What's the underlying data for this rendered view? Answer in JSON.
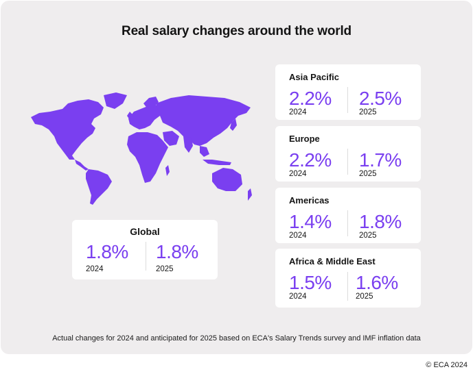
{
  "title": "Real salary changes around the world",
  "accent_color": "#7a3ff0",
  "map_icon": "world-map-icon",
  "global": {
    "name": "Global",
    "value_2024": "1.8%",
    "year_2024": "2024",
    "value_2025": "1.8%",
    "year_2025": "2025"
  },
  "regions": [
    {
      "name": "Asia Pacific",
      "value_2024": "2.2%",
      "year_2024": "2024",
      "value_2025": "2.5%",
      "year_2025": "2025"
    },
    {
      "name": "Europe",
      "value_2024": "2.2%",
      "year_2024": "2024",
      "value_2025": "1.7%",
      "year_2025": "2025"
    },
    {
      "name": "Americas",
      "value_2024": "1.4%",
      "year_2024": "2024",
      "value_2025": "1.8%",
      "year_2025": "2025"
    },
    {
      "name": "Africa & Middle East",
      "value_2024": "1.5%",
      "year_2024": "2024",
      "value_2025": "1.6%",
      "year_2025": "2025"
    }
  ],
  "footnote": "Actual changes for 2024 and anticipated for 2025 based on ECA's Salary Trends survey and IMF inflation data",
  "copyright": "© ECA 2024"
}
